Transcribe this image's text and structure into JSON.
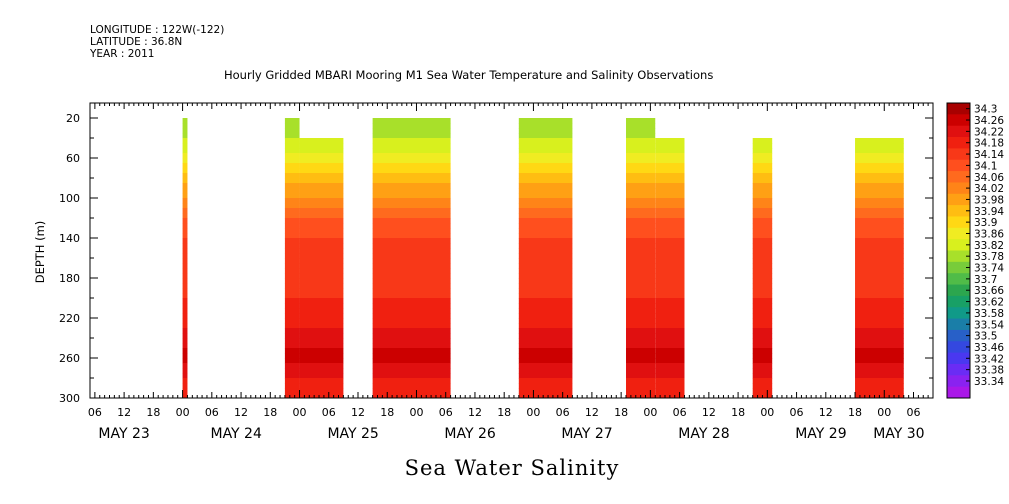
{
  "header": {
    "longitude": "LONGITUDE : 122W(-122)",
    "latitude": "LATITUDE : 36.8N",
    "year": "YEAR : 2011"
  },
  "chart_data": {
    "type": "heatmap",
    "title": "Hourly Gridded MBARI Mooring M1 Sea Water Temperature and Salinity Observations",
    "variable_label": "Sea Water Salinity",
    "ylabel": "DEPTH (m)",
    "y_axis_inverted": true,
    "ylim": [
      300,
      5
    ],
    "y_ticks": [
      20,
      60,
      100,
      140,
      180,
      220,
      260,
      300
    ],
    "x_axis": {
      "unit": "hours since 2011-05-23 00:00",
      "range_hours": [
        5,
        178
      ],
      "hour_ticks_hours": [
        6,
        12,
        18,
        24,
        30,
        36,
        42,
        48,
        54,
        60,
        66,
        72,
        78,
        84,
        90,
        96,
        102,
        108,
        114,
        120,
        126,
        132,
        138,
        144,
        150,
        156,
        162,
        168,
        174
      ],
      "hour_tick_labels": [
        "06",
        "12",
        "18",
        "00",
        "06",
        "12",
        "18",
        "00",
        "06",
        "12",
        "18",
        "00",
        "06",
        "12",
        "18",
        "00",
        "06",
        "12",
        "18",
        "00",
        "06",
        "12",
        "18",
        "00",
        "06",
        "12",
        "18",
        "00",
        "06"
      ],
      "date_labels": [
        {
          "text": "MAY 23",
          "hour": 12
        },
        {
          "text": "MAY 24",
          "hour": 35
        },
        {
          "text": "MAY 25",
          "hour": 59
        },
        {
          "text": "MAY 26",
          "hour": 83
        },
        {
          "text": "MAY 27",
          "hour": 107
        },
        {
          "text": "MAY 28",
          "hour": 131
        },
        {
          "text": "MAY 29",
          "hour": 155
        },
        {
          "text": "MAY 30",
          "hour": 171
        }
      ]
    },
    "colorbar": {
      "labels": [
        "34.3",
        "34.26",
        "34.22",
        "34.18",
        "34.14",
        "34.1",
        "34.06",
        "34.02",
        "33.98",
        "33.94",
        "33.9",
        "33.86",
        "33.82",
        "33.78",
        "33.74",
        "33.7",
        "33.66",
        "33.62",
        "33.58",
        "33.54",
        "33.5",
        "33.46",
        "33.42",
        "33.38",
        "33.34"
      ],
      "colors": [
        "#a80000",
        "#cc0000",
        "#e01010",
        "#f02010",
        "#f83818",
        "#ff4f1e",
        "#ff6a1e",
        "#ff8418",
        "#ffa014",
        "#ffbd12",
        "#ffd814",
        "#f0ec22",
        "#d8f01e",
        "#a8e02a",
        "#78cc3a",
        "#50bc48",
        "#2ca64e",
        "#18a066",
        "#109a88",
        "#1a7ea8",
        "#2860c8",
        "#3448e0",
        "#4a38f0",
        "#6a2cf4",
        "#8a22f0",
        "#aa18e8"
      ]
    },
    "series": [
      {
        "start_hour": 24.0,
        "end_hour": 25.0,
        "top_depth": 20
      },
      {
        "start_hour": 45.0,
        "end_hour": 48.0,
        "top_depth": 20
      },
      {
        "start_hour": 48.0,
        "end_hour": 57.0,
        "top_depth": 40
      },
      {
        "start_hour": 63.0,
        "end_hour": 79.0,
        "top_depth": 20
      },
      {
        "start_hour": 93.0,
        "end_hour": 104.0,
        "top_depth": 20
      },
      {
        "start_hour": 115.0,
        "end_hour": 121.0,
        "top_depth": 20
      },
      {
        "start_hour": 121.0,
        "end_hour": 127.0,
        "top_depth": 40
      },
      {
        "start_hour": 141.0,
        "end_hour": 145.0,
        "top_depth": 40
      },
      {
        "start_hour": 162.0,
        "end_hour": 172.0,
        "top_depth": 40
      }
    ],
    "salinity_profile": [
      {
        "depth": 20,
        "value": 33.76
      },
      {
        "depth": 40,
        "value": 33.8
      },
      {
        "depth": 60,
        "value": 33.86
      },
      {
        "depth": 80,
        "value": 33.94
      },
      {
        "depth": 100,
        "value": 34.0
      },
      {
        "depth": 120,
        "value": 34.08
      },
      {
        "depth": 140,
        "value": 34.12
      },
      {
        "depth": 160,
        "value": 34.14
      },
      {
        "depth": 180,
        "value": 34.15
      },
      {
        "depth": 200,
        "value": 34.16
      },
      {
        "depth": 220,
        "value": 34.18
      },
      {
        "depth": 240,
        "value": 34.22
      },
      {
        "depth": 260,
        "value": 34.26
      },
      {
        "depth": 280,
        "value": 34.2
      },
      {
        "depth": 300,
        "value": 34.18
      }
    ]
  }
}
